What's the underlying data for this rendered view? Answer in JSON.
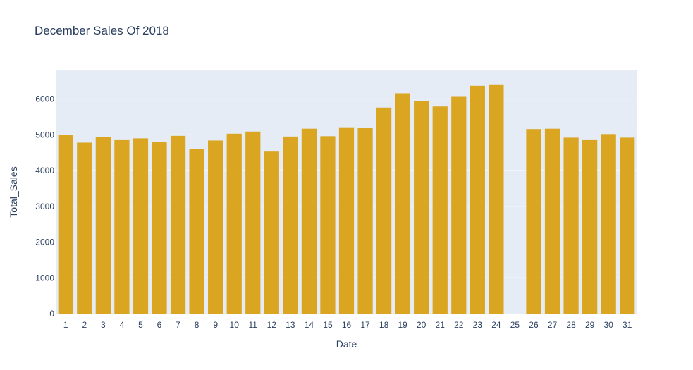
{
  "chart_data": {
    "type": "bar",
    "title": "December Sales Of 2018",
    "xlabel": "Date",
    "ylabel": "Total_Sales",
    "ylim": [
      0,
      6800
    ],
    "yticks": [
      0,
      1000,
      2000,
      3000,
      4000,
      5000,
      6000
    ],
    "grid": true,
    "categories": [
      "1",
      "2",
      "3",
      "4",
      "5",
      "6",
      "7",
      "8",
      "9",
      "10",
      "11",
      "12",
      "13",
      "14",
      "15",
      "16",
      "17",
      "18",
      "19",
      "20",
      "21",
      "22",
      "23",
      "24",
      "25",
      "26",
      "27",
      "28",
      "29",
      "30",
      "31"
    ],
    "values": [
      5000,
      4780,
      4930,
      4870,
      4900,
      4790,
      4970,
      4610,
      4840,
      5030,
      5090,
      4550,
      4950,
      5170,
      4960,
      5210,
      5200,
      5760,
      6160,
      5940,
      5790,
      6080,
      6370,
      6410,
      0,
      5160,
      5170,
      4920,
      4870,
      5020,
      4920
    ],
    "colors": {
      "bar": "#DAA520",
      "plot_bg": "#E5ECF6",
      "grid": "#ffffff",
      "text": "#2a3f5f"
    }
  }
}
